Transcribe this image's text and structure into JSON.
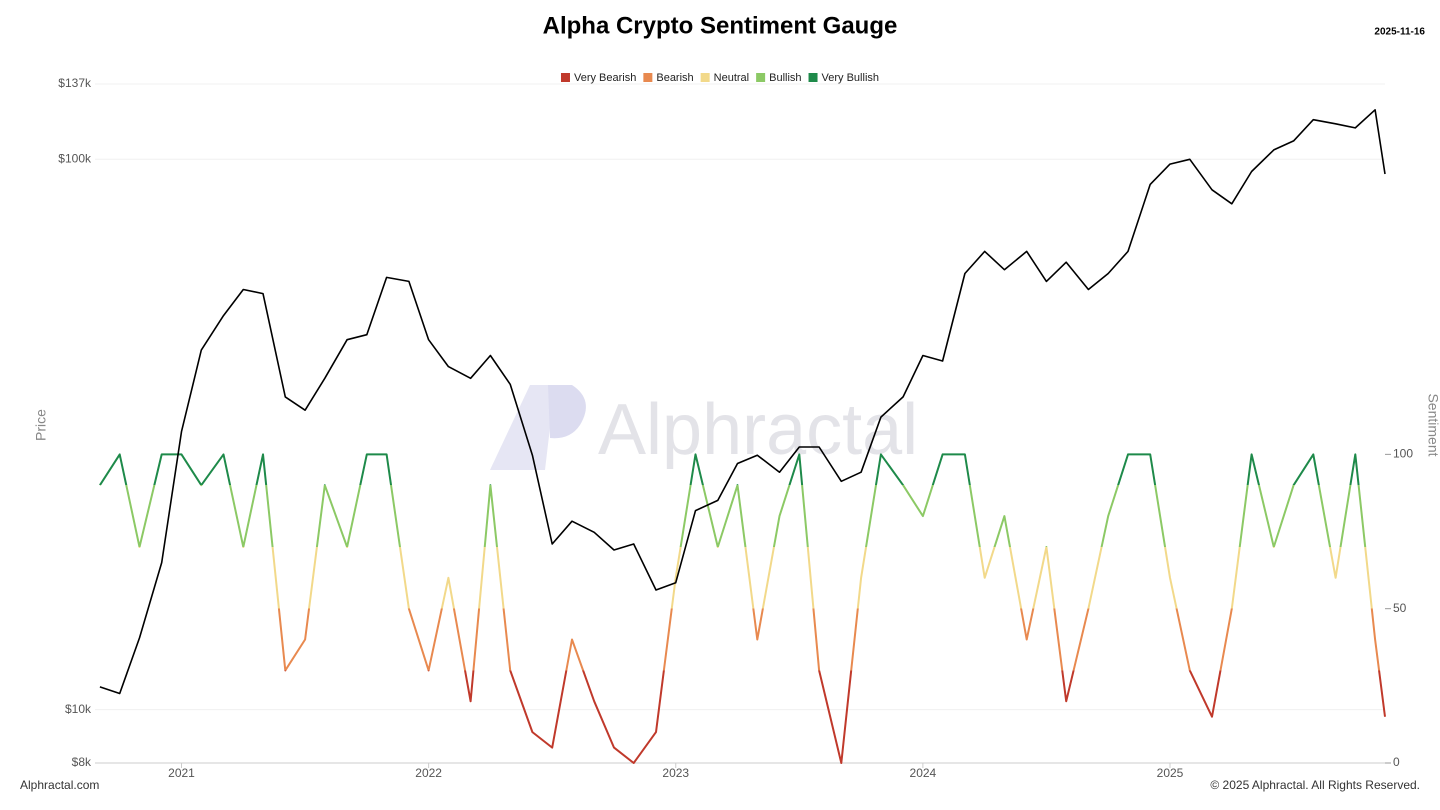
{
  "chart_data": {
    "type": "line",
    "title": "Alpha Crypto Sentiment Gauge",
    "date": "2025-11-16",
    "y_label": "Price",
    "y2_label": "Sentiment",
    "watermark": "Alphractal",
    "source": "Alphractal.com",
    "copyright": "© 2025 Alphractal. All Rights Reserved.",
    "x": [
      2020.67,
      2020.75,
      2020.83,
      2020.92,
      2021.0,
      2021.08,
      2021.17,
      2021.25,
      2021.33,
      2021.42,
      2021.5,
      2021.58,
      2021.67,
      2021.75,
      2021.83,
      2021.92,
      2022.0,
      2022.08,
      2022.17,
      2022.25,
      2022.33,
      2022.42,
      2022.5,
      2022.58,
      2022.67,
      2022.75,
      2022.83,
      2022.92,
      2023.0,
      2023.08,
      2023.17,
      2023.25,
      2023.33,
      2023.42,
      2023.5,
      2023.58,
      2023.67,
      2023.75,
      2023.83,
      2023.92,
      2024.0,
      2024.08,
      2024.17,
      2024.25,
      2024.33,
      2024.42,
      2024.5,
      2024.58,
      2024.67,
      2024.75,
      2024.83,
      2024.92,
      2025.0,
      2025.08,
      2025.17,
      2025.25,
      2025.33,
      2025.42,
      2025.5,
      2025.58,
      2025.67,
      2025.75,
      2025.83,
      2025.87
    ],
    "xlim": [
      2020.65,
      2025.87
    ],
    "xticks": [
      2021,
      2022,
      2023,
      2024,
      2025
    ],
    "ylim": [
      8000,
      137000
    ],
    "log_y": true,
    "yticks": [
      {
        "value": 8000,
        "label": "$8k"
      },
      {
        "value": 10000,
        "label": "$10k"
      },
      {
        "value": 100000,
        "label": "$100k"
      },
      {
        "value": 137000,
        "label": "$137k"
      }
    ],
    "y2lim": [
      0,
      220
    ],
    "y2ticks": [
      0,
      50,
      100
    ],
    "grid": true,
    "series": [
      {
        "name": "Price",
        "color": "#000000",
        "axis": "y",
        "values": [
          11000,
          10700,
          13500,
          18500,
          32000,
          45000,
          52000,
          58000,
          57000,
          37000,
          35000,
          40000,
          47000,
          48000,
          61000,
          60000,
          47000,
          42000,
          40000,
          44000,
          39000,
          29000,
          20000,
          22000,
          21000,
          19500,
          20000,
          16500,
          17000,
          23000,
          24000,
          28000,
          29000,
          27000,
          30000,
          30000,
          26000,
          27000,
          34000,
          37000,
          44000,
          43000,
          62000,
          68000,
          63000,
          68000,
          60000,
          65000,
          58000,
          62000,
          68000,
          90000,
          98000,
          100000,
          88000,
          83000,
          95000,
          104000,
          108000,
          118000,
          116000,
          114000,
          123000,
          94000
        ]
      },
      {
        "name": "Sentiment",
        "axis": "y2",
        "values": [
          90,
          100,
          70,
          100,
          100,
          90,
          100,
          70,
          100,
          30,
          40,
          90,
          70,
          100,
          100,
          50,
          30,
          60,
          20,
          90,
          30,
          10,
          5,
          40,
          20,
          5,
          0,
          10,
          60,
          100,
          70,
          90,
          40,
          80,
          100,
          30,
          0,
          60,
          100,
          90,
          80,
          100,
          100,
          60,
          80,
          40,
          70,
          20,
          50,
          80,
          100,
          100,
          60,
          30,
          15,
          50,
          100,
          70,
          90,
          100,
          60,
          100,
          40,
          15
        ]
      }
    ],
    "legend": [
      {
        "name": "Very Bearish",
        "color": "#c0392b",
        "from": 0
      },
      {
        "name": "Bearish",
        "color": "#e8894f",
        "from": 30
      },
      {
        "name": "Neutral",
        "color": "#f2d98a",
        "from": 50
      },
      {
        "name": "Bullish",
        "color": "#8cc965",
        "from": 70
      },
      {
        "name": "Very Bullish",
        "color": "#1e8a4a",
        "from": 90
      }
    ]
  }
}
